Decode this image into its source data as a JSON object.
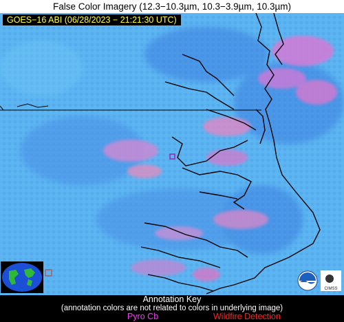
{
  "title": "False Color Imagery (12.3−10.3µm, 10.3−3.9µm, 10.3µm)",
  "timestamp": "GOES−16 ABI (06/28/2023 − 21:21:30 UTC)",
  "logos": [
    "noaa-logo",
    "cimss-logo"
  ],
  "logo_text": "CIMSS",
  "key": {
    "title": "Annotation Key",
    "note": "(annotation colors are not related to colors in underlying image)",
    "items": [
      {
        "label": "Pyro Cb",
        "color": "#ff33ff"
      },
      {
        "label": "Wildfire Detection",
        "color": "#ff2222"
      }
    ]
  }
}
